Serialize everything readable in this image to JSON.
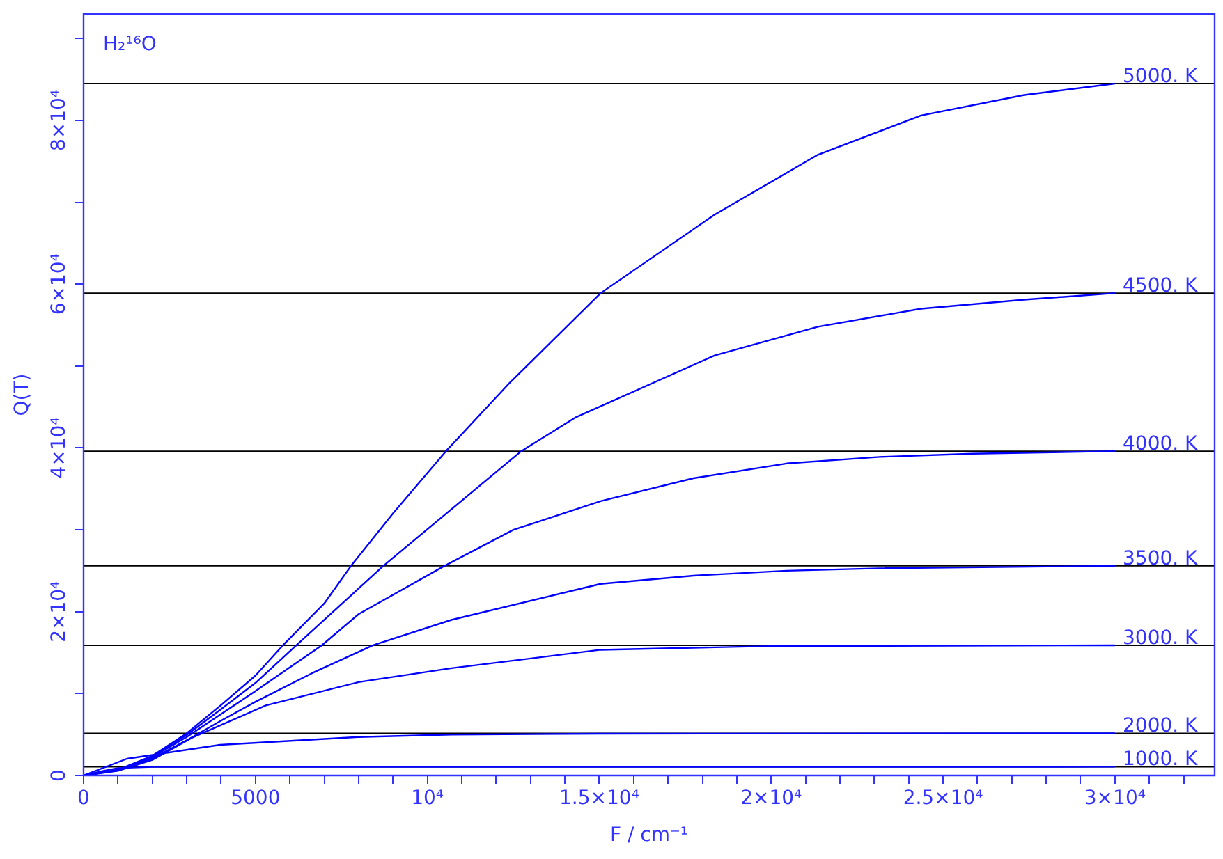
{
  "chart_data": {
    "type": "line",
    "xlabel": "F / cm⁻¹",
    "ylabel": "Q(T)",
    "annotations": [
      "H₂¹⁶O"
    ],
    "xlim": [
      0,
      32900
    ],
    "ylim": [
      0,
      93000
    ],
    "xticks": [
      0,
      {
        "value": 1000,
        "label": null
      },
      {
        "value": 2000,
        "label": null
      },
      {
        "value": 3000,
        "label": null
      },
      {
        "value": 4000,
        "label": null
      },
      5000,
      {
        "value": 6000,
        "label": null
      },
      {
        "value": 7000,
        "label": null
      },
      {
        "value": 8000,
        "label": null
      },
      {
        "value": 9000,
        "label": null
      },
      {
        "value": 10000,
        "label": "10⁴"
      },
      {
        "value": 11000,
        "label": null
      },
      {
        "value": 12000,
        "label": null
      },
      {
        "value": 13000,
        "label": null
      },
      {
        "value": 14000,
        "label": null
      },
      {
        "value": 15000,
        "label": "1.5×10⁴"
      },
      {
        "value": 16000,
        "label": null
      },
      {
        "value": 17000,
        "label": null
      },
      {
        "value": 18000,
        "label": null
      },
      {
        "value": 19000,
        "label": null
      },
      {
        "value": 20000,
        "label": "2×10⁴"
      },
      {
        "value": 21000,
        "label": null
      },
      {
        "value": 22000,
        "label": null
      },
      {
        "value": 23000,
        "label": null
      },
      {
        "value": 24000,
        "label": null
      },
      {
        "value": 25000,
        "label": "2.5×10⁴"
      },
      {
        "value": 26000,
        "label": null
      },
      {
        "value": 27000,
        "label": null
      },
      {
        "value": 28000,
        "label": null
      },
      {
        "value": 29000,
        "label": null
      },
      {
        "value": 30000,
        "label": "3×10⁴"
      },
      {
        "value": 31000,
        "label": null
      },
      {
        "value": 32000,
        "label": null
      }
    ],
    "yticks": [
      0,
      {
        "value": 10000,
        "label": null
      },
      {
        "value": 20000,
        "label": "2×10⁴"
      },
      {
        "value": 30000,
        "label": null
      },
      {
        "value": 40000,
        "label": "4×10⁴"
      },
      {
        "value": 50000,
        "label": null
      },
      {
        "value": 60000,
        "label": "6×10⁴"
      },
      {
        "value": 70000,
        "label": null
      },
      {
        "value": 80000,
        "label": "8×10⁴"
      },
      {
        "value": 90000,
        "label": null
      }
    ],
    "grid": false,
    "legend": false,
    "marker": "none",
    "line_style": "solid",
    "series": [
      {
        "color": "#0000ff",
        "x": [
          0,
          1000,
          2000,
          3000,
          4000,
          5000,
          5800,
          7000,
          7780,
          9000,
          10540,
          12360,
          15040,
          18360,
          21360,
          24360,
          27360,
          30000
        ],
        "values": [
          0,
          700,
          2400,
          5150,
          8600,
          12200,
          15900,
          21000,
          25600,
          32000,
          39600,
          47800,
          58900,
          68500,
          75800,
          80600,
          83100,
          84500
        ]
      },
      {
        "color": "#0000ff",
        "x": [
          0,
          1000,
          2000,
          3000,
          4000,
          5000,
          6190,
          8720,
          12730,
          14300,
          18360,
          21360,
          24360,
          27360,
          30000
        ],
        "values": [
          0,
          680,
          2350,
          4950,
          8100,
          11300,
          15900,
          25600,
          39600,
          43700,
          51300,
          54800,
          57000,
          58100,
          58900
        ]
      },
      {
        "color": "#0000ff",
        "x": [
          0,
          1000,
          2000,
          3000,
          4000,
          5000,
          6930,
          8000,
          10500,
          12500,
          15040,
          17740,
          20450,
          23150,
          25860,
          30000
        ],
        "values": [
          0,
          650,
          2250,
          4700,
          7500,
          10300,
          15900,
          19700,
          25600,
          30000,
          33500,
          36300,
          38100,
          38900,
          39300,
          39600
        ]
      },
      {
        "color": "#0000ff",
        "x": [
          0,
          1000,
          2000,
          3000,
          4000,
          5000,
          6650,
          8420,
          10700,
          15040,
          17740,
          20450,
          23150,
          30000
        ],
        "values": [
          0,
          620,
          2100,
          4300,
          6700,
          9000,
          12500,
          15900,
          19000,
          23400,
          24400,
          25000,
          25300,
          25600
        ]
      },
      {
        "color": "#0000ff",
        "x": [
          0,
          1000,
          2000,
          3150,
          5300,
          8000,
          10700,
          15040,
          20000,
          30000
        ],
        "values": [
          0,
          560,
          1900,
          4600,
          8550,
          11400,
          13100,
          15350,
          15800,
          15900
        ]
      },
      {
        "color": "#0000ff",
        "x": [
          0,
          1260,
          3970,
          8000,
          10700,
          15000,
          30000
        ],
        "values": [
          0,
          2040,
          3740,
          4700,
          4990,
          5100,
          5150
        ]
      },
      {
        "color": "#0000ff",
        "x": [
          0,
          500,
          1000,
          2000,
          30000
        ],
        "values": [
          0,
          500,
          900,
          1050,
          1070
        ]
      }
    ],
    "ref_lines": [
      {
        "axis": "y",
        "value": 84500,
        "label": "5000. K",
        "color": "#000000"
      },
      {
        "axis": "y",
        "value": 58900,
        "label": "4500. K",
        "color": "#000000"
      },
      {
        "axis": "y",
        "value": 39600,
        "label": "4000. K",
        "color": "#000000"
      },
      {
        "axis": "y",
        "value": 25600,
        "label": "3500. K",
        "color": "#000000"
      },
      {
        "axis": "y",
        "value": 15900,
        "label": "3000. K",
        "color": "#000000"
      },
      {
        "axis": "y",
        "value": 5150,
        "label": "2000. K",
        "color": "#000000"
      },
      {
        "axis": "y",
        "value": 1070,
        "label": "1000. K",
        "color": "#000000"
      }
    ]
  }
}
